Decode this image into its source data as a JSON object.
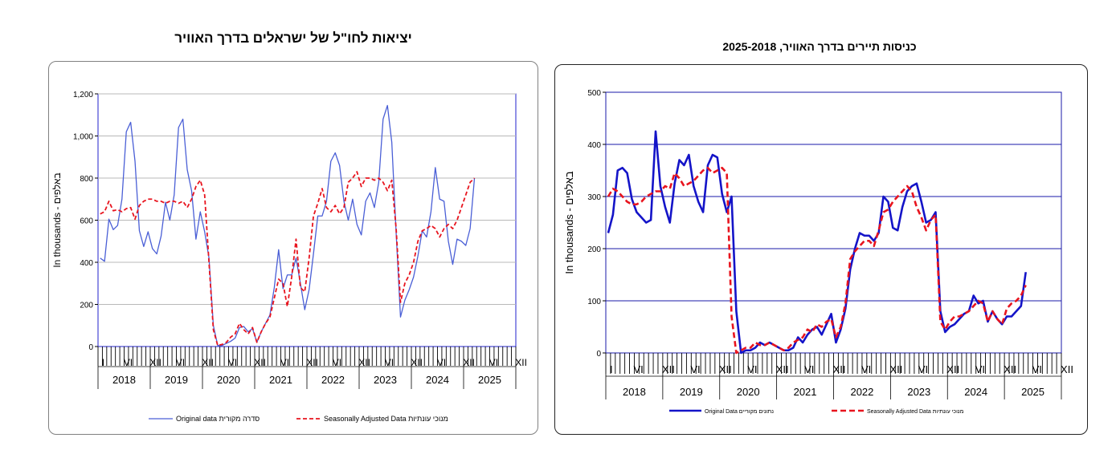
{
  "chart_data": [
    {
      "type": "line",
      "title": "יציאות לחו\"ל של ישראלים בדרך האוויר",
      "ylabel": "In thousands - באלפים",
      "ylim": [
        0,
        1200
      ],
      "yticks": [
        "0",
        "200",
        "400",
        "600",
        "800",
        "1,000",
        "1,200"
      ],
      "ytick_values": [
        0,
        200,
        400,
        600,
        800,
        1000,
        1200
      ],
      "month_labels": [
        "I",
        "VI",
        "XII",
        "VI",
        "XII",
        "VI",
        "XII",
        "VI",
        "XII",
        "VI",
        "XII",
        "VI",
        "XII",
        "VI",
        "XII",
        "VI",
        "XII"
      ],
      "years": [
        "2018",
        "2019",
        "2020",
        "2021",
        "2022",
        "2023",
        "2024",
        "2025"
      ],
      "grid": true,
      "legend_position": "bottom",
      "series": [
        {
          "name": "Original data סדרה מקורית",
          "color": "#4a5fd6",
          "dash": "solid",
          "values": [
            420,
            405,
            605,
            555,
            575,
            700,
            1020,
            1065,
            880,
            550,
            475,
            545,
            465,
            440,
            525,
            685,
            600,
            720,
            1040,
            1080,
            840,
            740,
            510,
            640,
            545,
            420,
            100,
            5,
            5,
            15,
            25,
            40,
            90,
            95,
            70,
            85,
            20,
            70,
            110,
            150,
            280,
            460,
            275,
            340,
            340,
            420,
            300,
            175,
            270,
            440,
            620,
            620,
            690,
            880,
            920,
            860,
            690,
            600,
            700,
            580,
            530,
            690,
            730,
            660,
            780,
            1080,
            1145,
            970,
            540,
            140,
            220,
            270,
            330,
            430,
            550,
            520,
            640,
            850,
            700,
            690,
            500,
            390,
            510,
            500,
            480,
            560,
            800
          ]
        },
        {
          "name": "Seasonally Adjusted Data מנוכי עונתיות",
          "color": "#e8141e",
          "dash": "dashed",
          "values": [
            630,
            640,
            690,
            645,
            650,
            640,
            655,
            660,
            605,
            670,
            690,
            700,
            700,
            690,
            690,
            680,
            690,
            690,
            680,
            690,
            660,
            700,
            760,
            790,
            720,
            400,
            80,
            5,
            10,
            20,
            45,
            60,
            110,
            80,
            60,
            90,
            20,
            70,
            110,
            140,
            230,
            320,
            300,
            190,
            330,
            510,
            280,
            260,
            420,
            620,
            680,
            750,
            660,
            640,
            670,
            630,
            660,
            780,
            800,
            830,
            760,
            800,
            800,
            790,
            800,
            780,
            740,
            790,
            560,
            210,
            300,
            340,
            400,
            500,
            550,
            560,
            575,
            560,
            520,
            560,
            580,
            560,
            600,
            660,
            720,
            780,
            800
          ]
        }
      ]
    },
    {
      "type": "line",
      "title": "כניסות תיירים בדרך האוויר, 2025-2018",
      "ylabel": "In thousands - באלפים",
      "ylim": [
        0,
        500
      ],
      "yticks": [
        "0",
        "100",
        "200",
        "300",
        "400",
        "500"
      ],
      "ytick_values": [
        0,
        100,
        200,
        300,
        400,
        500
      ],
      "month_labels": [
        "I",
        "VI",
        "XII",
        "VI",
        "XII",
        "VI",
        "XII",
        "VI",
        "XII",
        "VI",
        "XII",
        "VI",
        "XII",
        "VI",
        "XII",
        "VI",
        "XII"
      ],
      "years": [
        "2018",
        "2019",
        "2020",
        "2021",
        "2022",
        "2023",
        "2024",
        "2025"
      ],
      "grid": true,
      "legend_position": "bottom",
      "series": [
        {
          "name": "Original Data נתונים מקוריים",
          "color": "#1414c8",
          "dash": "solid",
          "values": [
            230,
            265,
            350,
            355,
            345,
            295,
            270,
            260,
            250,
            255,
            425,
            320,
            280,
            250,
            325,
            370,
            360,
            380,
            320,
            290,
            270,
            360,
            380,
            375,
            305,
            270,
            300,
            80,
            0,
            5,
            5,
            10,
            20,
            15,
            20,
            15,
            10,
            5,
            5,
            10,
            30,
            20,
            35,
            45,
            50,
            35,
            55,
            75,
            20,
            45,
            85,
            160,
            200,
            230,
            225,
            225,
            215,
            230,
            300,
            290,
            240,
            235,
            280,
            310,
            320,
            325,
            290,
            250,
            255,
            270,
            80,
            40,
            50,
            55,
            65,
            75,
            80,
            110,
            95,
            100,
            60,
            80,
            65,
            55,
            70,
            70,
            80,
            90,
            155
          ]
        },
        {
          "name": "Seasonally Adjusted Data מנוכי עונתיות",
          "color": "#e8141e",
          "dash": "dashed",
          "values": [
            300,
            315,
            310,
            300,
            290,
            285,
            285,
            290,
            300,
            305,
            310,
            310,
            320,
            315,
            345,
            335,
            320,
            325,
            330,
            340,
            350,
            355,
            345,
            350,
            355,
            345,
            70,
            0,
            5,
            10,
            10,
            20,
            15,
            15,
            20,
            15,
            10,
            5,
            10,
            20,
            25,
            30,
            45,
            40,
            55,
            50,
            60,
            65,
            30,
            50,
            95,
            180,
            195,
            205,
            215,
            215,
            205,
            235,
            270,
            275,
            290,
            300,
            310,
            320,
            310,
            280,
            260,
            235,
            255,
            265,
            60,
            45,
            60,
            70,
            70,
            75,
            80,
            90,
            100,
            95,
            60,
            80,
            65,
            55,
            85,
            95,
            100,
            110,
            130
          ]
        }
      ]
    }
  ]
}
